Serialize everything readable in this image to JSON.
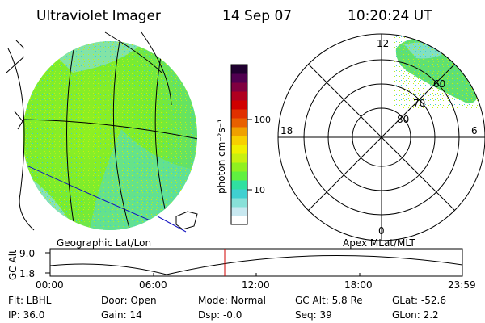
{
  "header": {
    "instrument": "Ultraviolet Imager",
    "date": "14 Sep 07",
    "time": "10:20:24 UT"
  },
  "colorbar": {
    "label": "photon cm⁻²s⁻¹",
    "ticks": [
      "100",
      "10"
    ],
    "colors": [
      "#ffffff",
      "#c8e8f0",
      "#88e0d8",
      "#40d0d0",
      "#30e0a0",
      "#60f040",
      "#90f020",
      "#c8f010",
      "#f0f000",
      "#f8d000",
      "#f0a000",
      "#e86000",
      "#e03000",
      "#d00000",
      "#b00020",
      "#800040",
      "#500050",
      "#200030"
    ]
  },
  "geo_panel": {
    "label": "Geographic Lat/Lon"
  },
  "polar_panel": {
    "label": "Apex MLat/MLT",
    "mlt_labels": [
      "12",
      "18",
      "6",
      "0"
    ],
    "mlat_labels": [
      "60",
      "70",
      "80"
    ]
  },
  "altitude_plot": {
    "ylabel": "GC Alt",
    "y_ticks": [
      "9.0",
      "1.8"
    ],
    "x_ticks": [
      "00:00",
      "06:00",
      "12:00",
      "18:00",
      "23:59"
    ]
  },
  "status": {
    "flt": "Flt: LBHL",
    "ip": "IP: 36.0",
    "door": "Door: Open",
    "gain": "Gain: 14",
    "mode": "Mode: Normal",
    "dsp": "Dsp:  -0.0",
    "gcalt": "GC Alt: 5.8 Re",
    "seq": "Seq: 39",
    "glat": "GLat: -52.6",
    "glon": "GLon:  2.2"
  }
}
